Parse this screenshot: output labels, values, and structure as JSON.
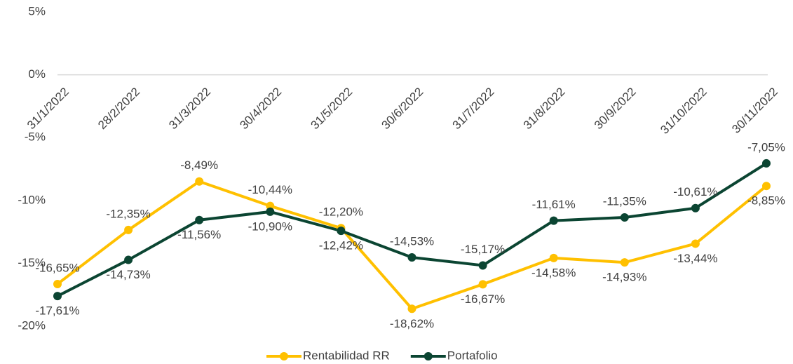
{
  "chart_data": {
    "type": "line",
    "categories": [
      "31/1/2022",
      "28/2/2022",
      "31/3/2022",
      "30/4/2022",
      "31/5/2022",
      "30/6/2022",
      "31/7/2022",
      "31/8/2022",
      "30/9/2022",
      "31/10/2022",
      "30/11/2022"
    ],
    "series": [
      {
        "name": "Rentabilidad RR",
        "color": "#FFC000",
        "values": [
          -16.65,
          -12.35,
          -8.49,
          -10.44,
          -12.2,
          -18.62,
          -16.67,
          -14.58,
          -14.93,
          -13.44,
          -8.85
        ],
        "value_labels": [
          "-16,65%",
          "-12,35%",
          "-8,49%",
          "-10,44%",
          "-12,20%",
          "-18,62%",
          "-16,67%",
          "-14,58%",
          "-14,93%",
          "-13,44%",
          "-8,85%"
        ]
      },
      {
        "name": "Portafolio",
        "color": "#0B4532",
        "values": [
          -17.61,
          -14.73,
          -11.56,
          -10.9,
          -12.42,
          -14.53,
          -15.17,
          -11.61,
          -11.35,
          -10.61,
          -7.05
        ],
        "value_labels": [
          "-17,61%",
          "-14,73%",
          "-11,56%",
          "-10,90%",
          "-12,42%",
          "-14,53%",
          "-15,17%",
          "-11,61%",
          "-11,35%",
          "-10,61%",
          "-7,05%"
        ]
      }
    ],
    "ylim": [
      -20,
      5
    ],
    "yticks": [
      {
        "value": -20,
        "label": "-20%"
      },
      {
        "value": -15,
        "label": "-15%"
      },
      {
        "value": -10,
        "label": "-10%"
      },
      {
        "value": -5,
        "label": "-5%"
      },
      {
        "value": 0,
        "label": "0%"
      },
      {
        "value": 5,
        "label": "5%"
      }
    ],
    "grid": false,
    "legend": "bottom"
  }
}
